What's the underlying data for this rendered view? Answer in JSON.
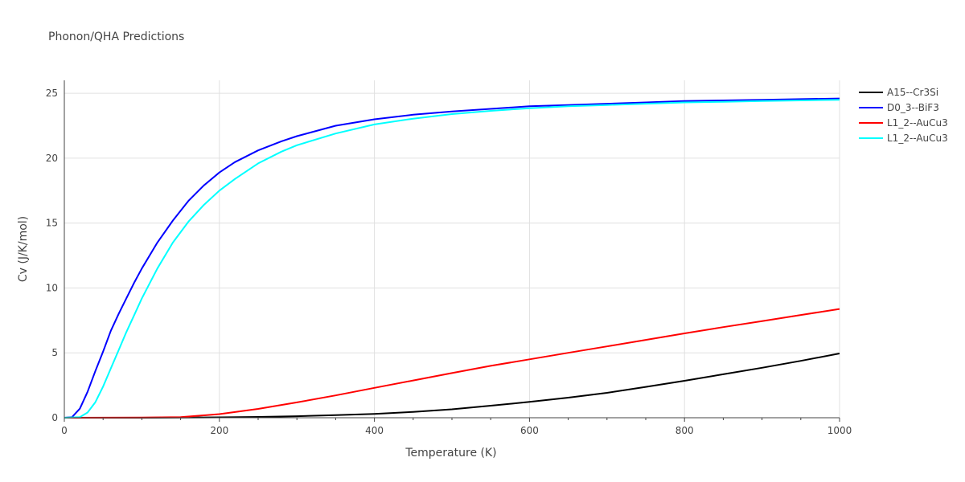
{
  "chart_data": {
    "type": "line",
    "title": "Phonon/QHA Predictions",
    "xlabel": "Temperature (K)",
    "ylabel": "Cv (J/K/mol)",
    "xlim": [
      0,
      1000
    ],
    "ylim": [
      0,
      26
    ],
    "x_ticks": [
      0,
      200,
      400,
      600,
      800,
      1000
    ],
    "y_ticks": [
      0,
      5,
      10,
      15,
      20,
      25
    ],
    "grid": true,
    "legend_position": "top-right",
    "series": [
      {
        "name": "A15--Cr3Si",
        "color": "#000000",
        "x": [
          0,
          100,
          200,
          250,
          300,
          350,
          400,
          450,
          500,
          550,
          600,
          650,
          700,
          750,
          800,
          850,
          900,
          950,
          1000
        ],
        "y": [
          0,
          0,
          0.03,
          0.06,
          0.12,
          0.2,
          0.3,
          0.45,
          0.65,
          0.93,
          1.22,
          1.55,
          1.92,
          2.38,
          2.85,
          3.35,
          3.85,
          4.38,
          4.95
        ]
      },
      {
        "name": "D0_3--BiF3",
        "color": "#0000ff",
        "x": [
          0,
          10,
          20,
          30,
          40,
          50,
          60,
          70,
          80,
          90,
          100,
          120,
          140,
          160,
          180,
          200,
          220,
          250,
          280,
          300,
          350,
          400,
          450,
          500,
          550,
          600,
          650,
          700,
          750,
          800,
          850,
          900,
          950,
          1000
        ],
        "y": [
          0,
          0.05,
          0.7,
          2.0,
          3.6,
          5.1,
          6.7,
          8.0,
          9.2,
          10.4,
          11.5,
          13.5,
          15.2,
          16.7,
          17.9,
          18.9,
          19.7,
          20.6,
          21.3,
          21.7,
          22.5,
          23.0,
          23.35,
          23.6,
          23.8,
          24.0,
          24.1,
          24.2,
          24.3,
          24.4,
          24.45,
          24.5,
          24.55,
          24.6
        ]
      },
      {
        "name": "L1_2--AuCu3",
        "color": "#ff0000",
        "x": [
          0,
          100,
          150,
          200,
          250,
          300,
          350,
          400,
          450,
          500,
          550,
          600,
          650,
          700,
          750,
          800,
          850,
          900,
          950,
          1000
        ],
        "y": [
          0,
          0.01,
          0.05,
          0.28,
          0.68,
          1.18,
          1.72,
          2.3,
          2.87,
          3.44,
          4.0,
          4.5,
          5.0,
          5.5,
          6.0,
          6.5,
          6.98,
          7.45,
          7.92,
          8.38
        ]
      },
      {
        "name": "L1_2--AuCu3",
        "color": "#00ffff",
        "x": [
          0,
          20,
          30,
          40,
          50,
          60,
          70,
          80,
          90,
          100,
          120,
          140,
          160,
          180,
          200,
          220,
          250,
          280,
          300,
          350,
          400,
          450,
          500,
          550,
          600,
          650,
          700,
          750,
          800,
          850,
          900,
          950,
          1000
        ],
        "y": [
          0,
          0.05,
          0.4,
          1.2,
          2.4,
          3.8,
          5.2,
          6.6,
          7.9,
          9.2,
          11.5,
          13.5,
          15.1,
          16.4,
          17.5,
          18.4,
          19.6,
          20.5,
          21.0,
          21.9,
          22.6,
          23.05,
          23.4,
          23.65,
          23.85,
          24.0,
          24.1,
          24.2,
          24.3,
          24.35,
          24.4,
          24.45,
          24.5
        ]
      }
    ]
  }
}
